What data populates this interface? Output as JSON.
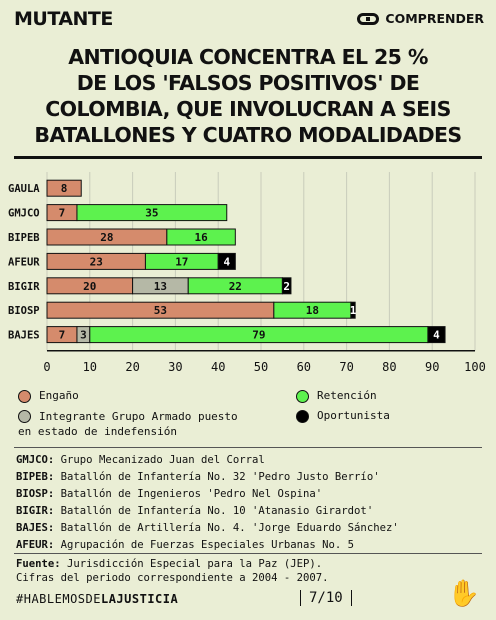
{
  "brand": "MUTANTE",
  "comprender": "COMPRENDER",
  "title_lines": [
    "ANTIOQUIA CONCENTRA EL 25 %",
    "DE LOS 'FALSOS POSITIVOS' DE",
    "COLOMBIA, QUE INVOLUCRAN A SEIS",
    "BATALLONES Y CUATRO MODALIDADES"
  ],
  "chart_data": {
    "type": "bar",
    "orientation": "horizontal",
    "stacked": true,
    "categories": [
      "GAULA",
      "GMJCO",
      "BIPEB",
      "AFEUR",
      "BIGIR",
      "BIOSP",
      "BAJES"
    ],
    "series": [
      {
        "name": "Engaño",
        "color": "#d58b6c",
        "values": [
          8,
          7,
          28,
          23,
          20,
          53,
          7
        ]
      },
      {
        "name": "Integrante Grupo Armado puesto en estado de indefensión",
        "color": "#b5b8a6",
        "values": [
          0,
          0,
          0,
          0,
          13,
          0,
          3
        ]
      },
      {
        "name": "Retención",
        "color": "#5df24e",
        "values": [
          0,
          35,
          16,
          17,
          22,
          18,
          79
        ]
      },
      {
        "name": "Oportunista",
        "color": "#000000",
        "values": [
          0,
          0,
          0,
          4,
          2,
          1,
          4
        ]
      }
    ],
    "x_ticks": [
      0,
      10,
      20,
      30,
      40,
      50,
      60,
      70,
      80,
      90,
      100
    ],
    "xlim": [
      0,
      100
    ],
    "grid": true
  },
  "legend": {
    "engano": "Engaño",
    "retencion": "Retención",
    "integrante_line1": "Integrante Grupo Armado puesto",
    "integrante_line2": "en estado de indefensión",
    "oportunista": "Oportunista"
  },
  "abbreviations": [
    {
      "code": "GMJCO:",
      "text": "Grupo Mecanizado Juan del Corral"
    },
    {
      "code": "BIPEB:",
      "text": "Batallón de Infantería No. 32 'Pedro Justo Berrío'"
    },
    {
      "code": "BIOSP:",
      "text": "Batallón de Ingenieros 'Pedro Nel Ospina'"
    },
    {
      "code": "BIGIR:",
      "text": "Batallón de Infantería No. 10 'Atanasio Girardot'"
    },
    {
      "code": "BAJES:",
      "text": "Batallón de Artillería No. 4. 'Jorge Eduardo Sánchez'"
    },
    {
      "code": "AFEUR:",
      "text": "Agrupación de Fuerzas Especiales Urbanas No. 5"
    }
  ],
  "source": {
    "label": "Fuente:",
    "text": "Jurisdicción Especial para la Paz (JEP).",
    "line2": "Cifras del periodo correspondiente a 2004 - 2007."
  },
  "footer": {
    "hashtag_prefix": "#HABLEMOSDE",
    "hashtag_bold": "LAJUSTICIA",
    "page": "7/10"
  }
}
